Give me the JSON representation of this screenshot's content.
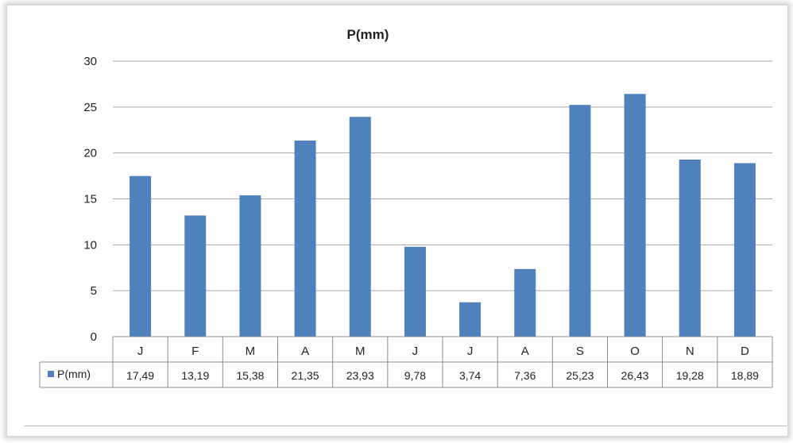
{
  "chart_data": {
    "type": "bar",
    "title": "P(mm)",
    "categories": [
      "J",
      "F",
      "M",
      "A",
      "M",
      "J",
      "J",
      "A",
      "S",
      "O",
      "N",
      "D"
    ],
    "series": [
      {
        "name": "P(mm)",
        "color": "#4f81bd",
        "values": [
          17.49,
          13.19,
          15.38,
          21.35,
          23.93,
          9.78,
          3.74,
          7.36,
          25.23,
          26.43,
          19.28,
          18.89
        ],
        "labels": [
          "17,49",
          "13,19",
          "15,38",
          "21,35",
          "23,93",
          "9,78",
          "3,74",
          "7,36",
          "25,23",
          "26,43",
          "19,28",
          "18,89"
        ]
      }
    ],
    "ylim": [
      0,
      30
    ],
    "yticks": [
      0,
      5,
      10,
      15,
      20,
      25,
      30
    ],
    "grid": true,
    "data_table": true
  }
}
